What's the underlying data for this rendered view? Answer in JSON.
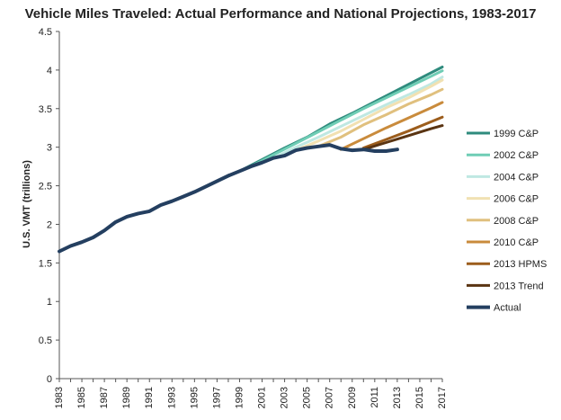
{
  "chart_data": {
    "type": "line",
    "title": "Vehicle Miles Traveled: Actual Performance and National Projections, 1983-2017",
    "xlabel": "",
    "ylabel": "U.S. VMT (trillions)",
    "xlim": [
      1983,
      2017
    ],
    "ylim": [
      0,
      4.5
    ],
    "y_ticks": [
      0,
      0.5,
      1,
      1.5,
      2,
      2.5,
      3,
      3.5,
      4,
      4.5
    ],
    "y_tick_labels": [
      "0",
      "0.5",
      "1",
      "1.5",
      "2",
      "2.5",
      "3",
      "3.5",
      "4",
      "4.5"
    ],
    "x_ticks": [
      1983,
      1985,
      1987,
      1989,
      1991,
      1993,
      1995,
      1997,
      1999,
      2001,
      2003,
      2005,
      2007,
      2009,
      2011,
      2013,
      2015,
      2017
    ],
    "x_tick_labels": [
      "1983",
      "1985",
      "1987",
      "1989",
      "1991",
      "1993",
      "1995",
      "1997",
      "1999",
      "2001",
      "2003",
      "2005",
      "2007",
      "2009",
      "2011",
      "2013",
      "2015",
      "2017"
    ],
    "legend_position": "right",
    "series": [
      {
        "name": "1999 C&P",
        "color": "#2e8b7d",
        "x": [
          1997,
          1999,
          2001,
          2003,
          2005,
          2007,
          2009,
          2011,
          2013,
          2015,
          2017
        ],
        "y": [
          2.56,
          2.69,
          2.84,
          2.99,
          3.13,
          3.3,
          3.44,
          3.59,
          3.74,
          3.89,
          4.04
        ]
      },
      {
        "name": "2002 C&P",
        "color": "#6fcdb5",
        "x": [
          2000,
          2002,
          2004,
          2006,
          2008,
          2010,
          2012,
          2014,
          2016,
          2017
        ],
        "y": [
          2.75,
          2.9,
          3.05,
          3.2,
          3.35,
          3.5,
          3.64,
          3.78,
          3.92,
          3.99
        ]
      },
      {
        "name": "2004 C&P",
        "color": "#bfe8e2",
        "x": [
          2002,
          2004,
          2006,
          2008,
          2010,
          2012,
          2014,
          2016,
          2017
        ],
        "y": [
          2.86,
          3.0,
          3.13,
          3.27,
          3.41,
          3.55,
          3.68,
          3.82,
          3.91
        ]
      },
      {
        "name": "2006 C&P",
        "color": "#f1e1b2",
        "x": [
          2004,
          2006,
          2008,
          2010,
          2012,
          2014,
          2016,
          2017
        ],
        "y": [
          2.96,
          3.08,
          3.21,
          3.36,
          3.51,
          3.64,
          3.79,
          3.87
        ]
      },
      {
        "name": "2008 C&P",
        "color": "#e0c07e",
        "x": [
          2006,
          2008,
          2010,
          2012,
          2014,
          2016,
          2017
        ],
        "y": [
          3.01,
          3.13,
          3.29,
          3.42,
          3.56,
          3.68,
          3.75
        ]
      },
      {
        "name": "2010 C&P",
        "color": "#c98b3c",
        "x": [
          2008,
          2010,
          2012,
          2014,
          2016,
          2017
        ],
        "y": [
          2.97,
          3.11,
          3.25,
          3.38,
          3.51,
          3.58
        ]
      },
      {
        "name": "2013 HPMS",
        "color": "#9c5d1c",
        "x": [
          2010,
          2012,
          2014,
          2016,
          2017
        ],
        "y": [
          2.99,
          3.1,
          3.21,
          3.33,
          3.39
        ]
      },
      {
        "name": "2013 Trend",
        "color": "#5a3412",
        "x": [
          2010,
          2012,
          2014,
          2016,
          2017
        ],
        "y": [
          2.97,
          3.06,
          3.15,
          3.24,
          3.28
        ]
      },
      {
        "name": "Actual",
        "color": "#243f60",
        "x": [
          1983,
          1984,
          1985,
          1986,
          1987,
          1988,
          1989,
          1990,
          1991,
          1992,
          1993,
          1994,
          1995,
          1996,
          1997,
          1998,
          1999,
          2000,
          2001,
          2002,
          2003,
          2004,
          2005,
          2006,
          2007,
          2008,
          2009,
          2010,
          2011,
          2012,
          2013
        ],
        "y": [
          1.65,
          1.72,
          1.77,
          1.83,
          1.92,
          2.03,
          2.1,
          2.14,
          2.17,
          2.25,
          2.3,
          2.36,
          2.42,
          2.49,
          2.56,
          2.63,
          2.69,
          2.75,
          2.8,
          2.86,
          2.89,
          2.96,
          2.99,
          3.01,
          3.03,
          2.98,
          2.96,
          2.97,
          2.95,
          2.95,
          2.97
        ]
      }
    ]
  }
}
